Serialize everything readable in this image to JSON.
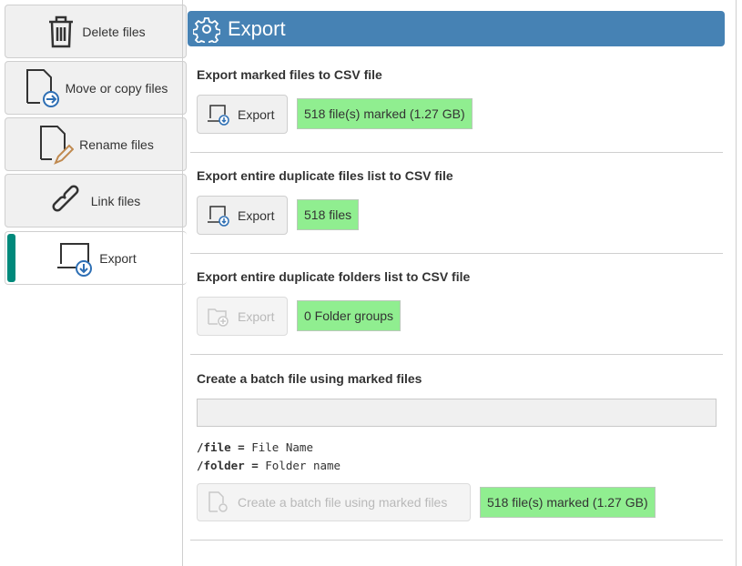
{
  "sidebar": {
    "items": [
      {
        "label": "Delete files",
        "icon": "trash-icon"
      },
      {
        "label": "Move or copy files",
        "icon": "file-move-icon"
      },
      {
        "label": "Rename files",
        "icon": "file-rename-icon"
      },
      {
        "label": "Link files",
        "icon": "link-icon"
      },
      {
        "label": "Export",
        "icon": "export-icon",
        "active": true
      }
    ]
  },
  "header": {
    "title": "Export",
    "icon": "gear-icon",
    "color": "#4682b4"
  },
  "sections": [
    {
      "title": "Export marked files to CSV file",
      "button": "Export",
      "badge": "518 file(s) marked (1.27 GB)"
    },
    {
      "title": "Export entire duplicate files list to CSV file",
      "button": "Export",
      "badge": "518 files"
    },
    {
      "title": "Export entire duplicate folders list to CSV file",
      "button": "Export",
      "button_disabled": true,
      "badge": "0 Folder groups"
    },
    {
      "title": "Create a batch file using marked files",
      "input_value": "",
      "help": [
        {
          "key": "/file",
          "eq": "=",
          "desc": "File Name"
        },
        {
          "key": "/folder",
          "eq": "=",
          "desc": "Folder name"
        }
      ],
      "button": "Create a batch file using marked files",
      "button_disabled": true,
      "badge": "518 file(s) marked (1.27 GB)"
    }
  ],
  "colors": {
    "badge": "#90ee90",
    "active_accent": "#00897b"
  }
}
